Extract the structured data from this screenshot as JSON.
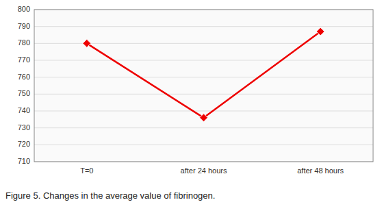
{
  "chart_data": {
    "type": "line",
    "title": "Figure 5. Changes in the average value of fibrinogen.",
    "categories": [
      "T=0",
      "after 24 hours",
      "after 48 hours"
    ],
    "values": [
      780,
      736,
      787
    ],
    "color": "#ee0000",
    "marker": "diamond",
    "ylim": [
      710,
      800
    ],
    "yticks": [
      710,
      720,
      730,
      740,
      750,
      760,
      770,
      780,
      790,
      800
    ],
    "grid": true
  }
}
